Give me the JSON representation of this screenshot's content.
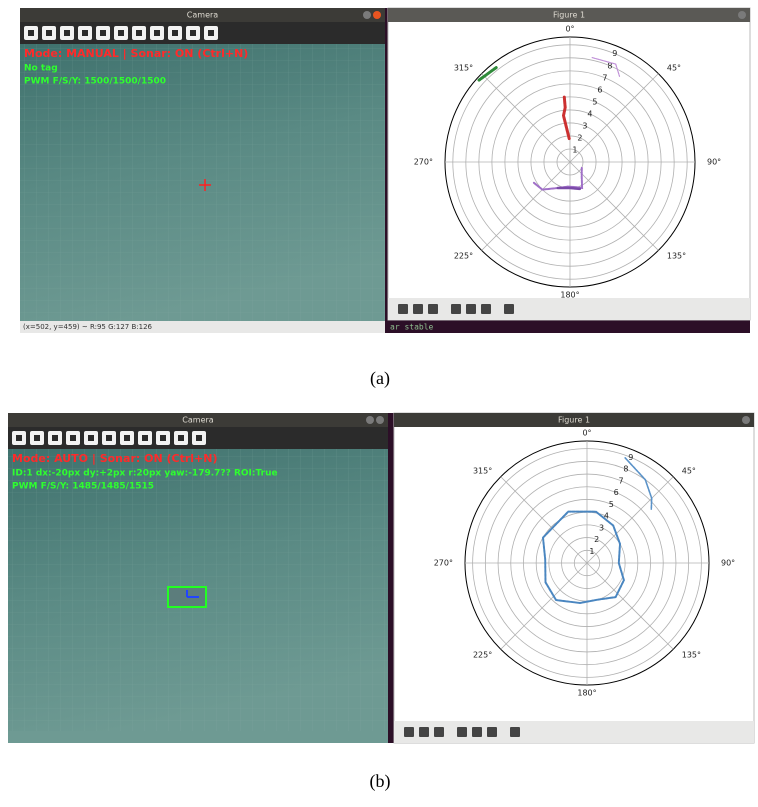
{
  "panels": [
    {
      "caption": "(a)",
      "camera": {
        "title": "Camera",
        "mode": "Mode: MANUAL  |  Sonar: ON (Ctrl+N)",
        "tag": "No tag",
        "pwm": "PWM F/S/Y: 1500/1500/1500",
        "status": "(x=502, y=459) ~ R:95 G:127 B:126"
      },
      "figure": {
        "title": "Figure 1",
        "angle_labels": [
          "0°",
          "45°",
          "90°",
          "135°",
          "180°",
          "225°",
          "270°",
          "315°"
        ],
        "radial_labels": [
          1,
          2,
          3,
          4,
          5,
          6,
          7,
          8,
          9
        ]
      },
      "terminal": "ar stable"
    },
    {
      "caption": "(b)",
      "camera": {
        "title": "Camera",
        "mode": "Mode: AUTO  |  Sonar: ON (Ctrl+N)",
        "tag": "ID:1 dx:-20px dy:+2px r:20px yaw:-179.7?? ROI:True",
        "pwm": "PWM F/S/Y: 1485/1485/1515"
      },
      "figure": {
        "title": "Figure 1",
        "angle_labels": [
          "0°",
          "45°",
          "90°",
          "135°",
          "180°",
          "225°",
          "270°",
          "315°"
        ],
        "radial_labels": [
          1,
          2,
          3,
          4,
          5,
          6,
          7,
          8,
          9
        ]
      }
    }
  ]
}
